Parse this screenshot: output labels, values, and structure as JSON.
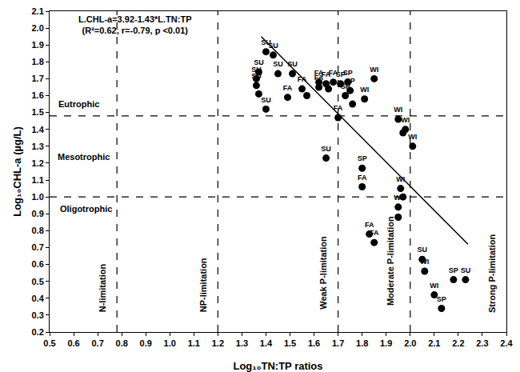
{
  "chart_data": {
    "type": "scatter",
    "x_label": "Log₁₀TN:TP ratios",
    "y_label": "Log₁₀CHL-a (µg/L)",
    "color": "#000000",
    "marker": "circle",
    "x": [
      1.4,
      1.43,
      1.37,
      1.36,
      1.36,
      1.37,
      1.4,
      1.45,
      1.51,
      1.49,
      1.55,
      1.57,
      1.62,
      1.62,
      1.65,
      1.68,
      1.71,
      1.74,
      1.75,
      1.73,
      1.76,
      1.66,
      1.81,
      1.85,
      1.7,
      1.65,
      1.8,
      1.8,
      1.95,
      1.98,
      1.97,
      2.01,
      1.96,
      1.97,
      1.95,
      1.95,
      1.83,
      1.85,
      2.05,
      2.06,
      2.1,
      2.13,
      2.18,
      2.23
    ],
    "y": [
      1.86,
      1.84,
      1.74,
      1.7,
      1.66,
      1.61,
      1.52,
      1.73,
      1.73,
      1.59,
      1.64,
      1.6,
      1.65,
      1.68,
      1.67,
      1.68,
      1.67,
      1.68,
      1.63,
      1.6,
      1.55,
      1.64,
      1.58,
      1.7,
      1.47,
      1.23,
      1.17,
      1.06,
      1.46,
      1.4,
      1.38,
      1.3,
      1.05,
      1.0,
      0.94,
      0.88,
      0.78,
      0.73,
      0.63,
      0.56,
      0.42,
      0.34,
      0.51,
      0.51
    ],
    "labels": [
      "SU",
      "SU",
      "SU",
      "SU",
      "SU",
      null,
      "SU",
      "SU",
      "SU",
      "FA",
      "FA",
      null,
      "FA",
      "FA",
      "FA",
      "FA",
      "SP",
      "SP",
      "SP",
      "SP",
      null,
      null,
      "WI",
      "WI",
      "FA",
      "SU",
      "SP",
      "FA",
      "WI",
      "WI",
      null,
      "WI",
      "WI",
      null,
      "WI",
      null,
      "FA",
      "FA",
      "SU",
      "WI",
      "WI",
      "SP",
      "SP",
      "SU"
    ],
    "regression": {
      "x": [
        1.38,
        2.24
      ],
      "y": [
        1.95,
        0.72
      ]
    },
    "equation": [
      "L.CHL-a=3.92-1.43*L.TN:TP",
      "(R²=0.62, r=-0.79, p <0.01)"
    ],
    "x_thresholds": [
      0.78,
      1.2,
      1.7,
      2.0
    ],
    "y_thresholds": [
      1.48,
      1.0
    ],
    "trophic_labels": [
      {
        "text": "Eutrophic",
        "x": 0.62,
        "y": 1.55
      },
      {
        "text": "Mesotrophic",
        "x": 0.64,
        "y": 1.24
      },
      {
        "text": "Oligotrophic",
        "x": 0.65,
        "y": 0.93
      }
    ],
    "limitation_labels": [
      {
        "text": "N-limitation",
        "x": 0.72,
        "y": 0.46
      },
      {
        "text": "NP-limitation",
        "x": 1.14,
        "y": 0.48
      },
      {
        "text": "Weak P-limitation",
        "x": 1.64,
        "y": 0.55
      },
      {
        "text": "Moderate P-limitation",
        "x": 1.92,
        "y": 0.62
      },
      {
        "text": "Strong P-limitation",
        "x": 2.34,
        "y": 0.55
      }
    ],
    "xlim": [
      0.5,
      2.4
    ],
    "xticks": [
      0.5,
      0.6,
      0.7,
      0.8,
      0.9,
      {
        "value": 1,
        "label": "1.0"
      },
      1.1,
      1.2,
      1.3,
      1.4,
      1.5,
      1.6,
      1.7,
      1.8,
      1.9,
      {
        "value": 2,
        "label": "2.0"
      },
      2.1,
      2.2,
      2.3,
      2.4
    ],
    "ylim": [
      0.2,
      2.1
    ],
    "yticks": [
      0.2,
      0.3,
      0.4,
      0.5,
      0.6,
      0.7,
      0.8,
      0.9,
      {
        "value": 1,
        "label": "1.0"
      },
      1.1,
      1.2,
      1.3,
      1.4,
      1.5,
      1.6,
      1.7,
      1.8,
      1.9,
      {
        "value": 2,
        "label": "2.0"
      },
      2.1
    ],
    "grid": false
  }
}
